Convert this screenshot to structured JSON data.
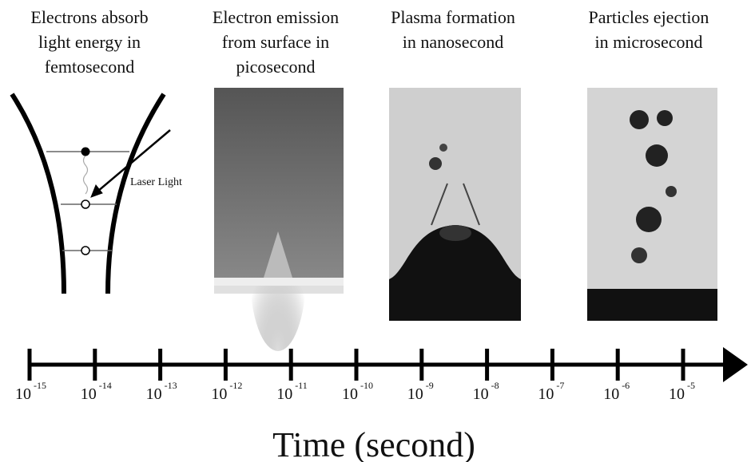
{
  "stages": [
    {
      "caption": [
        "Electrons absorb",
        "light energy in",
        "femtosecond"
      ]
    },
    {
      "caption": [
        "Electron emission",
        "from surface in",
        "picosecond"
      ]
    },
    {
      "caption": [
        "Plasma formation",
        "in nanosecond"
      ]
    },
    {
      "caption": [
        "Particles ejection",
        "in microsecond"
      ]
    }
  ],
  "laser_label": "Laser Light",
  "timeline": {
    "ticks": [
      {
        "base": "10",
        "exponent": "-15"
      },
      {
        "base": "10",
        "exponent": "-14"
      },
      {
        "base": "10",
        "exponent": "-13"
      },
      {
        "base": "10",
        "exponent": "-12"
      },
      {
        "base": "10",
        "exponent": "-11"
      },
      {
        "base": "10",
        "exponent": "-10"
      },
      {
        "base": "10",
        "exponent": "-9"
      },
      {
        "base": "10",
        "exponent": "-8"
      },
      {
        "base": "10",
        "exponent": "-7"
      },
      {
        "base": "10",
        "exponent": "-6"
      },
      {
        "base": "10",
        "exponent": "-5"
      }
    ],
    "title": "Time (second)"
  }
}
